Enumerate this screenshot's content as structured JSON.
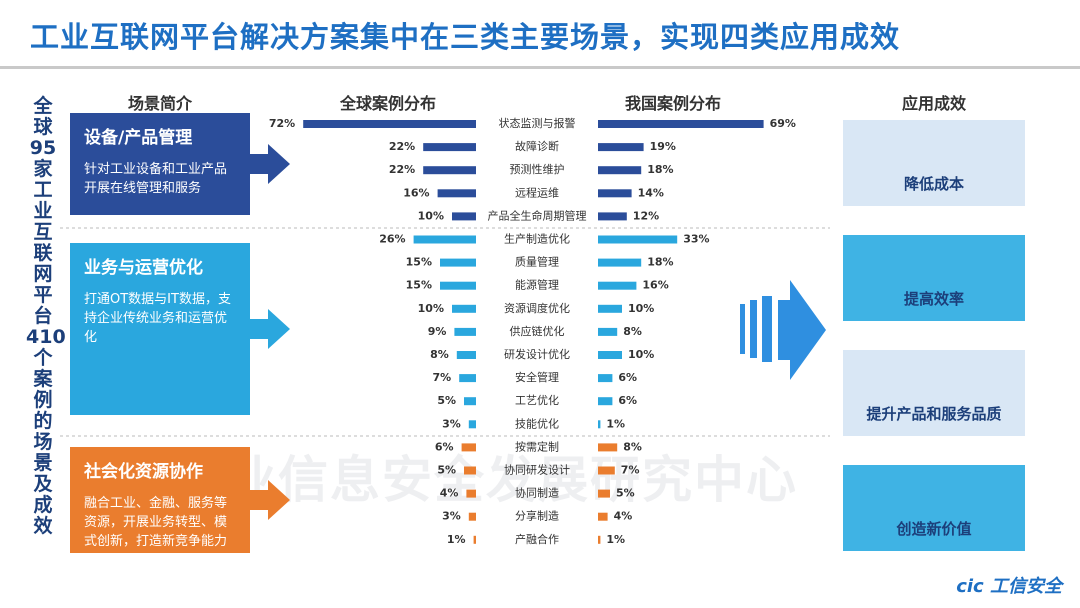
{
  "title": "工业互联网平台解决方案集中在三类主要场景，实现四类应用成效",
  "side_label": "全球95家工业互联网平台410个案例的场景及成效",
  "scenarios": {
    "heading": "场景简介",
    "items": [
      {
        "title": "设备/产品管理",
        "description": "针对工业设备和工业产品开展在线管理和服务",
        "color": "#2b4d9a"
      },
      {
        "title": "业务与运营优化",
        "description": "打通OT数据与IT数据，支持企业传统业务和运营优化",
        "color": "#2aa7de"
      },
      {
        "title": "社会化资源协作",
        "description": "融合工业、金融、服务等资源，开展业务转型、模式创新，打造新竞争能力",
        "color": "#ea7d2e"
      }
    ]
  },
  "effects": {
    "heading": "应用成效",
    "items": [
      {
        "title": "降低成本",
        "color": "#d9e7f5"
      },
      {
        "title": "提高效率",
        "color": "#3fb3e4"
      },
      {
        "title": "提升产品和服务品质",
        "color": "#d9e7f5"
      },
      {
        "title": "创造新价值",
        "color": "#3fb3e4"
      }
    ]
  },
  "watermark": "国家工业信息安全发展研究中心",
  "logo": "cic 工信安全",
  "chart_data": {
    "type": "butterfly",
    "categories": [
      "状态监测与报警",
      "故障诊断",
      "预测性维护",
      "远程运维",
      "产品全生命周期管理",
      "生产制造优化",
      "质量管理",
      "能源管理",
      "资源调度优化",
      "供应链优化",
      "研发设计优化",
      "安全管理",
      "工艺优化",
      "技能优化",
      "按需定制",
      "协同研发设计",
      "协同制造",
      "分享制造",
      "产融合作"
    ],
    "colors": [
      "#2b4d9a",
      "#2b4d9a",
      "#2b4d9a",
      "#2b4d9a",
      "#2b4d9a",
      "#2aa7de",
      "#2aa7de",
      "#2aa7de",
      "#2aa7de",
      "#2aa7de",
      "#2aa7de",
      "#2aa7de",
      "#2aa7de",
      "#2aa7de",
      "#ea7d2e",
      "#ea7d2e",
      "#ea7d2e",
      "#ea7d2e",
      "#ea7d2e"
    ],
    "series": [
      {
        "name": "全球案例分布",
        "values": [
          72,
          22,
          22,
          16,
          10,
          26,
          15,
          15,
          10,
          9,
          8,
          7,
          5,
          3,
          6,
          5,
          4,
          3,
          1
        ],
        "value_labels": [
          "72%",
          "22%",
          "22%",
          "16%",
          "10%",
          "26%",
          "15%",
          "15%",
          "10%",
          "9%",
          "8%",
          "7%",
          "5%",
          "3%",
          "6%",
          "5%",
          "4%",
          "3%",
          "1%"
        ]
      },
      {
        "name": "我国案例分布",
        "values": [
          69,
          19,
          18,
          14,
          12,
          33,
          18,
          16,
          10,
          8,
          10,
          6,
          6,
          1,
          8,
          7,
          5,
          4,
          1
        ],
        "value_labels": [
          "69%",
          "19%",
          "18%",
          "14%",
          "12%",
          "33%",
          "18%",
          "16%",
          "10%",
          "8%",
          "10%",
          "6%",
          "6%",
          "1%",
          "8%",
          "7%",
          "5%",
          "4%",
          "1%"
        ]
      }
    ]
  }
}
